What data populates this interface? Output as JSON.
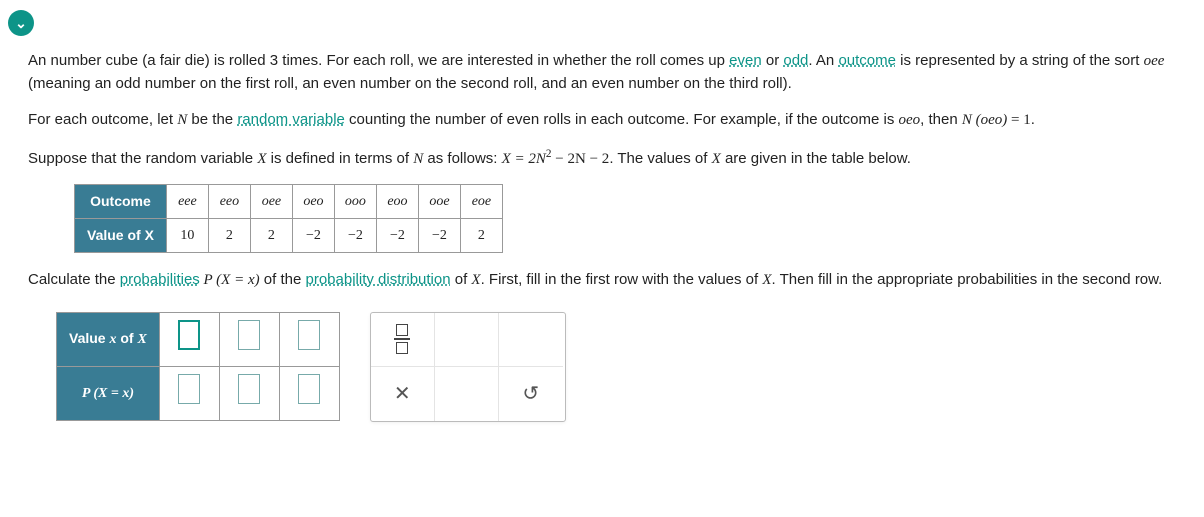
{
  "collapse_icon": "⌄",
  "para1": {
    "t1": "An number cube (a fair die) is rolled 3 times. For each roll, we are interested in whether the roll comes up ",
    "link_even": "even",
    "t2": " or ",
    "link_odd": "odd",
    "t3": ". An ",
    "link_outcome": "outcome",
    "t4": " is represented by a string of the sort ",
    "ex": "oee",
    "t5": " (meaning an odd number on the first roll, an even number on the second roll, and an even number on the third roll)."
  },
  "para2": {
    "t1": "For each outcome, let ",
    "N": "N",
    "t2": " be the ",
    "link_rv": "random variable",
    "t3": " counting the number of even rolls in each outcome. For example, if the outcome is ",
    "ex": "oeo",
    "t4": ", then ",
    "eq_lhs": "N (oeo)",
    "eq_eq": " = ",
    "eq_rhs": "1",
    "t5": "."
  },
  "para3": {
    "t1": "Suppose that the random variable ",
    "X": "X",
    "t2": " is defined in terms of ",
    "N": "N",
    "t3": " as follows: ",
    "eq": "X = 2N",
    "eq_sup": "2",
    "eq_tail": " − 2N − 2",
    "t4": ". The values of ",
    "X2": "X",
    "t5": " are given in the table below."
  },
  "outcome_table": {
    "header_outcome": "Outcome",
    "header_value": "Value of X",
    "outcomes": [
      "eee",
      "eeo",
      "oee",
      "oeo",
      "ooo",
      "eoo",
      "ooe",
      "eoe"
    ],
    "values": [
      "10",
      "2",
      "2",
      "−2",
      "−2",
      "−2",
      "−2",
      "2"
    ]
  },
  "para4": {
    "t1": "Calculate the ",
    "link_prob": "probabilities",
    "eq_px": " P (X = x)",
    "t2": " of the ",
    "link_pd": "probability distribution",
    "t3": " of ",
    "X": "X",
    "t4": ". First, fill in the first row with the values of ",
    "X2": "X",
    "t5": ". Then fill in the appropriate probabilities in the second row."
  },
  "answer_table": {
    "row1_label_a": "Value ",
    "row1_label_x": "x",
    "row1_label_b": " of ",
    "row1_label_X": "X",
    "row2_label": "P (X = x)",
    "cols": 3
  },
  "palette": {
    "frac_title": "fraction",
    "clear_title": "clear",
    "reset_title": "reset"
  },
  "colors": {
    "accent": "#0d9488",
    "table_header_bg": "#397c94",
    "table_header_fg": "#ffffff",
    "border": "#999999"
  }
}
